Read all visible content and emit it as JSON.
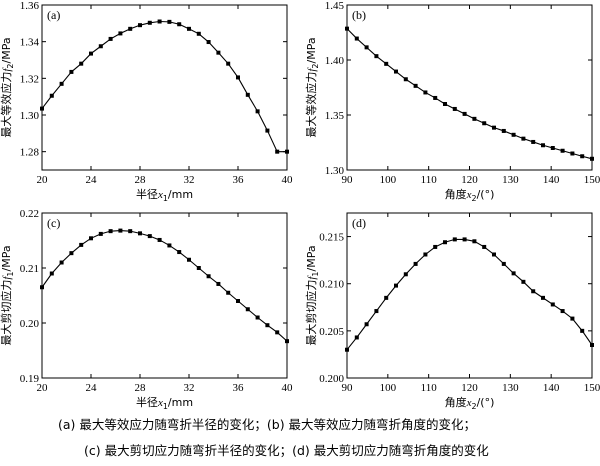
{
  "chart_data": [
    {
      "type": "line",
      "panel": "(a)",
      "xlabel": "半径x1/mm",
      "ylabel": "最大等效应力f2/MPa",
      "xlim": [
        20,
        40
      ],
      "ylim": [
        1.27,
        1.36
      ],
      "xticks": [
        20,
        24,
        28,
        32,
        36,
        40
      ],
      "yticks": [
        1.28,
        1.3,
        1.32,
        1.34,
        1.36
      ],
      "series": [
        {
          "x": [
            20,
            20.8,
            21.6,
            22.4,
            23.2,
            24,
            24.8,
            25.6,
            26.4,
            27.2,
            28,
            28.8,
            29.6,
            30.4,
            31.2,
            32,
            32.8,
            33.6,
            34.4,
            35.2,
            36,
            36.8,
            37.6,
            38.4,
            39.2,
            40
          ],
          "y": [
            1.3035,
            1.3105,
            1.317,
            1.3235,
            1.328,
            1.3335,
            1.3375,
            1.3415,
            1.3445,
            1.347,
            1.349,
            1.3503,
            1.351,
            1.3508,
            1.3495,
            1.347,
            1.3443,
            1.3398,
            1.334,
            1.328,
            1.3205,
            1.311,
            1.302,
            1.2915,
            1.28,
            1.28
          ]
        }
      ]
    },
    {
      "type": "line",
      "panel": "(b)",
      "xlabel": "角度x2/(°)",
      "ylabel": "最大等效应力f2/MPa",
      "xlim": [
        90,
        150
      ],
      "ylim": [
        1.3,
        1.45
      ],
      "xticks": [
        90,
        100,
        110,
        120,
        130,
        140,
        150
      ],
      "yticks": [
        1.3,
        1.35,
        1.4,
        1.45
      ],
      "series": [
        {
          "x": [
            90,
            92.4,
            94.8,
            97.2,
            99.6,
            102,
            104.4,
            106.8,
            109.2,
            111.6,
            114,
            116.4,
            118.8,
            121.2,
            123.6,
            126,
            128.4,
            130.8,
            133.2,
            135.6,
            138,
            140.4,
            142.8,
            145.2,
            147.6,
            150
          ],
          "y": [
            1.4285,
            1.4195,
            1.4115,
            1.4035,
            1.3965,
            1.3895,
            1.3825,
            1.3765,
            1.3705,
            1.3655,
            1.36,
            1.3555,
            1.351,
            1.3465,
            1.3425,
            1.3385,
            1.3355,
            1.332,
            1.3285,
            1.3255,
            1.3225,
            1.32,
            1.3175,
            1.315,
            1.3125,
            1.3102
          ]
        }
      ]
    },
    {
      "type": "line",
      "panel": "(c)",
      "xlabel": "半径x1/mm",
      "ylabel": "最大剪切应力f1/MPa",
      "xlim": [
        20,
        40
      ],
      "ylim": [
        0.19,
        0.22
      ],
      "xticks": [
        20,
        24,
        28,
        32,
        36,
        40
      ],
      "yticks": [
        0.19,
        0.2,
        0.21,
        0.22
      ],
      "series": [
        {
          "x": [
            20,
            20.8,
            21.6,
            22.4,
            23.2,
            24,
            24.8,
            25.6,
            26.4,
            27.2,
            28,
            28.8,
            29.6,
            30.4,
            31.2,
            32,
            32.8,
            33.6,
            34.4,
            35.2,
            36,
            36.8,
            37.6,
            38.4,
            39.2,
            40
          ],
          "y": [
            0.2065,
            0.209,
            0.211,
            0.2127,
            0.2142,
            0.2154,
            0.2162,
            0.2167,
            0.2168,
            0.2167,
            0.2163,
            0.2158,
            0.2151,
            0.2141,
            0.2129,
            0.2115,
            0.21,
            0.2085,
            0.2071,
            0.2055,
            0.204,
            0.2025,
            0.201,
            0.1996,
            0.1983,
            0.1967
          ]
        }
      ]
    },
    {
      "type": "line",
      "panel": "(d)",
      "xlabel": "角度x2/(°)",
      "ylabel": "最大剪切应力f1/MPa",
      "xlim": [
        90,
        150
      ],
      "ylim": [
        0.2,
        0.2175
      ],
      "xticks": [
        90,
        100,
        110,
        120,
        130,
        140,
        150
      ],
      "yticks": [
        0.2,
        0.205,
        0.21,
        0.215
      ],
      "series": [
        {
          "x": [
            90,
            92.4,
            94.8,
            97.2,
            99.6,
            102,
            104.4,
            106.8,
            109.2,
            111.6,
            114,
            116.4,
            118.8,
            121.2,
            123.6,
            126,
            128.4,
            130.8,
            133.2,
            135.6,
            138,
            140.4,
            142.8,
            145.2,
            147.6,
            150
          ],
          "y": [
            0.203,
            0.2043,
            0.2057,
            0.2071,
            0.2085,
            0.2098,
            0.211,
            0.2121,
            0.2131,
            0.2139,
            0.2144,
            0.2147,
            0.2147,
            0.2145,
            0.2139,
            0.2131,
            0.2121,
            0.2111,
            0.2102,
            0.2092,
            0.2085,
            0.2078,
            0.2071,
            0.2063,
            0.205,
            0.2035
          ]
        }
      ]
    }
  ],
  "captions": {
    "line1": "(a) 最大等效应力随弯折半径的变化；(b) 最大等效应力随弯折角度的变化；",
    "line2": "(c) 最大剪切应力随弯折半径的变化；(d) 最大剪切应力随弯折角度的变化"
  }
}
